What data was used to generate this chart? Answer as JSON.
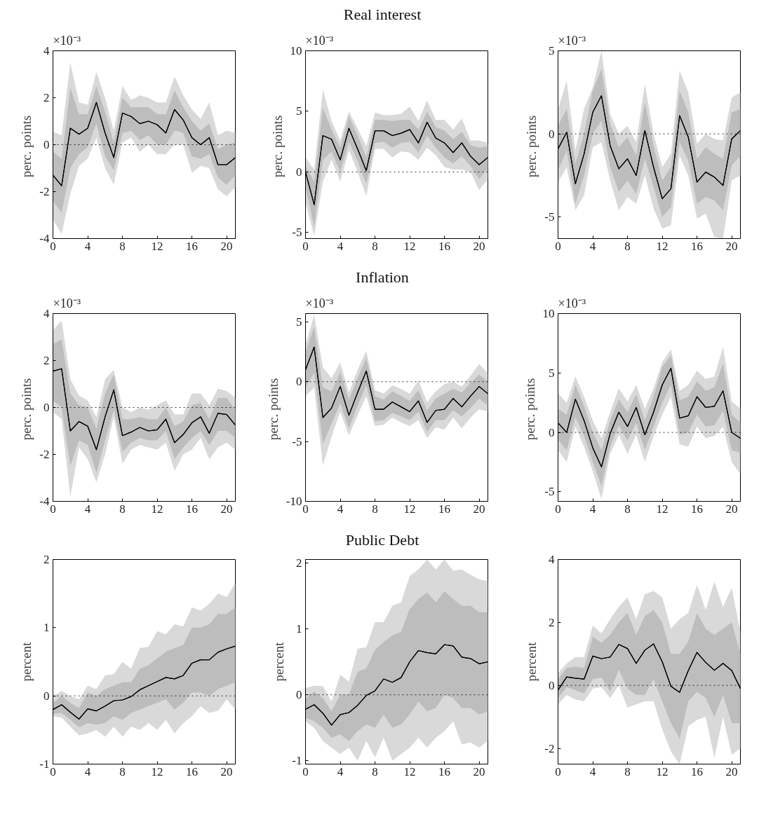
{
  "chart_data": [
    {
      "type": "line",
      "ylabel": "perc.  points",
      "annotations": [
        "×10⁻³"
      ],
      "x": [
        0,
        1,
        2,
        3,
        4,
        5,
        6,
        7,
        8,
        9,
        10,
        11,
        12,
        13,
        14,
        15,
        16,
        17,
        18,
        19,
        20,
        21
      ],
      "xlim": [
        0,
        21
      ],
      "xticks": [
        0,
        4,
        8,
        12,
        16,
        20
      ],
      "ylim": [
        -4,
        4
      ],
      "yticks": [
        -4,
        -2,
        0,
        2,
        4
      ],
      "ref_lines": [
        {
          "axis": "y",
          "value": 0,
          "color": "#000000",
          "line_style": "dotted"
        }
      ],
      "series": [
        {
          "color": "#000000",
          "values": [
            -1.3,
            -1.75,
            0.7,
            0.45,
            0.7,
            1.8,
            0.5,
            -0.55,
            1.35,
            1.2,
            0.9,
            1.0,
            0.85,
            0.5,
            1.5,
            1.05,
            0.3,
            0.0,
            0.3,
            -0.85,
            -0.85,
            -0.55
          ],
          "lower": [
            -3.2,
            -3.8,
            -2.1,
            -0.9,
            -0.6,
            0.3,
            -1.0,
            -1.7,
            0.1,
            0.3,
            -0.3,
            0.0,
            -0.4,
            -0.4,
            0.0,
            0.0,
            -1.2,
            -0.9,
            -1.0,
            -1.9,
            -2.2,
            -1.8
          ],
          "upper": [
            0.55,
            0.4,
            3.5,
            1.8,
            1.7,
            3.1,
            2.0,
            0.6,
            2.5,
            1.9,
            2.1,
            2.0,
            1.8,
            1.8,
            2.9,
            2.1,
            1.5,
            1.1,
            1.8,
            0.4,
            0.6,
            0.5
          ]
        },
        {
          "color": "#000000",
          "values": [
            -1.3,
            -1.75,
            0.7,
            0.45,
            0.7,
            1.8,
            0.5,
            -0.55,
            1.35,
            1.2,
            0.9,
            1.0,
            0.85,
            0.5,
            1.5,
            1.05,
            0.3,
            0.0,
            0.3,
            -0.85,
            -0.85,
            -0.55
          ],
          "lower": [
            -2.4,
            -2.9,
            -1.0,
            -0.4,
            -0.1,
            0.9,
            -0.5,
            -1.1,
            0.5,
            0.6,
            0.2,
            0.4,
            0.0,
            0.0,
            0.6,
            0.5,
            -0.5,
            -0.6,
            -0.4,
            -1.4,
            -1.7,
            -1.3
          ],
          "upper": [
            -0.3,
            -0.6,
            2.4,
            1.3,
            1.3,
            2.5,
            1.4,
            0.1,
            2.0,
            1.6,
            1.6,
            1.6,
            1.3,
            1.3,
            2.3,
            1.6,
            1.0,
            0.6,
            0.9,
            -0.2,
            0.0,
            0.1
          ]
        }
      ]
    },
    {
      "type": "line",
      "title": "Real interest",
      "ylabel": "perc.  points",
      "annotations": [
        "×10⁻³"
      ],
      "x": [
        0,
        1,
        2,
        3,
        4,
        5,
        6,
        7,
        8,
        9,
        10,
        11,
        12,
        13,
        14,
        15,
        16,
        17,
        18,
        19,
        20,
        21
      ],
      "xlim": [
        0,
        21
      ],
      "xticks": [
        0,
        4,
        8,
        12,
        16,
        20
      ],
      "ylim": [
        -5.5,
        10
      ],
      "yticks": [
        -5,
        0,
        5,
        10
      ],
      "ref_lines": [
        {
          "axis": "y",
          "value": 0,
          "color": "#000000",
          "line_style": "dotted"
        }
      ],
      "series": [
        {
          "color": "#000000",
          "values": [
            0,
            -2.7,
            3.0,
            2.7,
            1.0,
            3.6,
            1.9,
            0.1,
            3.4,
            3.4,
            3.0,
            3.2,
            3.5,
            2.4,
            4.1,
            2.8,
            2.4,
            1.6,
            2.4,
            1.3,
            0.6,
            1.2
          ],
          "lower": [
            -2.5,
            -5.3,
            -0.8,
            1.0,
            -0.8,
            1.8,
            0.0,
            -2.0,
            1.9,
            1.9,
            1.2,
            1.7,
            1.6,
            1.0,
            2.0,
            1.4,
            0.4,
            0.2,
            0.2,
            0.0,
            -1.5,
            -0.6
          ],
          "upper": [
            1.2,
            0.2,
            6.8,
            4.2,
            2.6,
            5.0,
            3.6,
            2.1,
            4.9,
            4.7,
            4.7,
            4.8,
            5.4,
            4.2,
            5.9,
            4.3,
            4.3,
            3.5,
            4.4,
            2.6,
            2.6,
            2.4
          ]
        },
        {
          "color": "#000000",
          "values": [
            0,
            -2.7,
            3.0,
            2.7,
            1.0,
            3.6,
            1.9,
            0.1,
            3.4,
            3.4,
            3.0,
            3.2,
            3.5,
            2.4,
            4.1,
            2.8,
            2.4,
            1.6,
            2.4,
            1.3,
            0.6,
            1.2
          ],
          "lower": [
            -1.2,
            -4.5,
            1.0,
            1.7,
            0.0,
            2.5,
            0.9,
            -1.0,
            2.4,
            2.5,
            2.0,
            2.4,
            2.5,
            1.6,
            3.0,
            2.0,
            1.2,
            0.7,
            1.3,
            0.5,
            -0.6,
            0.3
          ],
          "upper": [
            0.5,
            -0.8,
            5.3,
            3.5,
            2.0,
            4.6,
            3.0,
            1.2,
            4.3,
            4.3,
            4.2,
            4.3,
            4.3,
            3.5,
            5.0,
            3.7,
            3.4,
            2.7,
            3.3,
            2.2,
            2.0,
            2.1
          ]
        }
      ]
    },
    {
      "type": "line",
      "ylabel": "perc.  points",
      "annotations": [
        "×10⁻³"
      ],
      "x": [
        0,
        1,
        2,
        3,
        4,
        5,
        6,
        7,
        8,
        9,
        10,
        11,
        12,
        13,
        14,
        15,
        16,
        17,
        18,
        19,
        20,
        21
      ],
      "xlim": [
        0,
        21
      ],
      "xticks": [
        0,
        4,
        8,
        12,
        16,
        20
      ],
      "ylim": [
        -6.3,
        5
      ],
      "yticks": [
        -5,
        0,
        5
      ],
      "ref_lines": [
        {
          "axis": "y",
          "value": 0,
          "color": "#000000",
          "line_style": "dotted"
        }
      ],
      "series": [
        {
          "color": "#000000",
          "values": [
            -0.9,
            0.1,
            -3.0,
            -1.2,
            1.3,
            2.3,
            -0.7,
            -2.1,
            -1.5,
            -2.5,
            0.2,
            -2.0,
            -3.9,
            -3.3,
            1.1,
            -0.2,
            -2.9,
            -2.3,
            -2.6,
            -3.1,
            -0.3,
            0.2
          ],
          "lower": [
            -2.9,
            -2.0,
            -4.6,
            -3.7,
            -0.8,
            -0.5,
            -2.8,
            -4.6,
            -3.8,
            -4.2,
            -2.5,
            -4.5,
            -5.7,
            -5.5,
            -1.3,
            -2.5,
            -5.1,
            -4.8,
            -6.2,
            -6.3,
            -2.8,
            -2.5
          ],
          "upper": [
            1.5,
            3.2,
            -1.0,
            1.5,
            2.8,
            5.0,
            1.2,
            0.0,
            0.5,
            -0.5,
            3.0,
            0.0,
            -2.0,
            -1.2,
            3.8,
            2.5,
            -0.6,
            0.0,
            -0.3,
            -0.4,
            2.2,
            2.5
          ]
        },
        {
          "color": "#000000",
          "values": [
            -0.9,
            0.1,
            -3.0,
            -1.2,
            1.3,
            2.3,
            -0.7,
            -2.1,
            -1.5,
            -2.5,
            0.2,
            -2.0,
            -3.9,
            -3.3,
            1.1,
            -0.2,
            -2.9,
            -2.3,
            -2.6,
            -3.1,
            -0.3,
            0.2
          ],
          "lower": [
            -2.2,
            -1.0,
            -4.2,
            -2.5,
            0.0,
            0.8,
            -2.0,
            -3.5,
            -2.8,
            -3.6,
            -1.5,
            -3.2,
            -5.0,
            -4.4,
            -0.5,
            -1.6,
            -4.2,
            -3.8,
            -4.0,
            -4.6,
            -1.9,
            -1.3
          ],
          "upper": [
            0.5,
            1.5,
            -1.8,
            0.0,
            2.6,
            3.9,
            0.6,
            -0.8,
            -0.2,
            -1.3,
            1.9,
            -0.7,
            -2.8,
            -2.0,
            2.6,
            1.3,
            -1.5,
            -0.8,
            -1.2,
            -1.5,
            1.3,
            1.5
          ]
        }
      ]
    },
    {
      "type": "line",
      "ylabel": "perc.  points",
      "annotations": [
        "×10⁻³"
      ],
      "x": [
        0,
        1,
        2,
        3,
        4,
        5,
        6,
        7,
        8,
        9,
        10,
        11,
        12,
        13,
        14,
        15,
        16,
        17,
        18,
        19,
        20,
        21
      ],
      "xlim": [
        0,
        21
      ],
      "xticks": [
        0,
        4,
        8,
        12,
        16,
        20
      ],
      "ylim": [
        -4,
        4
      ],
      "yticks": [
        -4,
        -2,
        0,
        2,
        4
      ],
      "ref_lines": [
        {
          "axis": "y",
          "value": 0,
          "color": "#000000",
          "line_style": "dotted"
        }
      ],
      "series": [
        {
          "color": "#000000",
          "values": [
            1.55,
            1.65,
            -1.0,
            -0.6,
            -0.8,
            -1.8,
            -0.4,
            0.75,
            -1.2,
            -1.05,
            -0.85,
            -1.0,
            -0.95,
            -0.5,
            -1.5,
            -1.15,
            -0.65,
            -0.4,
            -1.1,
            -0.25,
            -0.3,
            -0.75
          ],
          "lower": [
            -0.2,
            -0.5,
            -3.8,
            -1.7,
            -2.2,
            -3.2,
            -2.0,
            -0.4,
            -2.4,
            -1.8,
            -1.6,
            -1.7,
            -1.8,
            -1.5,
            -2.7,
            -2.0,
            -1.8,
            -1.3,
            -2.2,
            -1.7,
            -1.5,
            -1.8
          ],
          "upper": [
            3.3,
            3.7,
            1.2,
            0.5,
            0.3,
            -0.4,
            1.2,
            1.6,
            0.0,
            -0.2,
            0.0,
            -0.1,
            0.1,
            0.3,
            -0.3,
            -0.3,
            0.6,
            0.6,
            0.1,
            0.8,
            0.7,
            0.4
          ]
        },
        {
          "color": "#000000",
          "values": [
            1.55,
            1.65,
            -1.0,
            -0.6,
            -0.8,
            -1.8,
            -0.4,
            0.75,
            -1.2,
            -1.05,
            -0.85,
            -1.0,
            -0.95,
            -0.5,
            -1.5,
            -1.15,
            -0.65,
            -0.4,
            -1.1,
            -0.25,
            -0.3,
            -0.75
          ],
          "lower": [
            0.3,
            0.0,
            -2.5,
            -1.4,
            -1.6,
            -2.8,
            -1.4,
            -0.1,
            -1.9,
            -1.5,
            -1.3,
            -1.4,
            -1.4,
            -1.0,
            -2.2,
            -1.7,
            -1.3,
            -1.0,
            -1.6,
            -1.0,
            -1.0,
            -1.3
          ],
          "upper": [
            2.7,
            2.9,
            0.6,
            0.1,
            0.0,
            -0.9,
            0.6,
            1.4,
            -0.5,
            -0.5,
            -0.4,
            -0.5,
            -0.5,
            0.0,
            -0.8,
            -0.6,
            0.1,
            0.2,
            -0.5,
            0.4,
            0.4,
            -0.1
          ]
        }
      ]
    },
    {
      "type": "line",
      "title": "Inflation",
      "ylabel": "perc.  points",
      "annotations": [
        "×10⁻³"
      ],
      "x": [
        0,
        1,
        2,
        3,
        4,
        5,
        6,
        7,
        8,
        9,
        10,
        11,
        12,
        13,
        14,
        15,
        16,
        17,
        18,
        19,
        20,
        21
      ],
      "xlim": [
        0,
        21
      ],
      "xticks": [
        0,
        4,
        8,
        12,
        16,
        20
      ],
      "ylim": [
        -10,
        5.7
      ],
      "yticks": [
        -10,
        -5,
        0,
        5
      ],
      "ref_lines": [
        {
          "axis": "y",
          "value": 0,
          "color": "#000000",
          "line_style": "dotted"
        }
      ],
      "series": [
        {
          "color": "#000000",
          "values": [
            1.0,
            2.9,
            -3.0,
            -2.2,
            -0.4,
            -2.8,
            -0.9,
            0.9,
            -2.3,
            -2.3,
            -1.7,
            -2.1,
            -2.5,
            -1.6,
            -3.4,
            -2.4,
            -2.3,
            -1.4,
            -2.1,
            -1.2,
            -0.4,
            -1.0
          ],
          "lower": [
            -1.2,
            -0.5,
            -7.0,
            -4.6,
            -2.5,
            -4.5,
            -2.8,
            -1.2,
            -3.7,
            -3.6,
            -3.0,
            -3.4,
            -3.7,
            -3.2,
            -4.7,
            -3.8,
            -4.0,
            -3.0,
            -3.9,
            -3.0,
            -2.3,
            -2.5
          ],
          "upper": [
            3.1,
            5.6,
            1.2,
            0.3,
            1.6,
            -0.9,
            1.0,
            2.6,
            -0.7,
            -1.0,
            -0.3,
            -0.6,
            -1.0,
            0.1,
            -1.7,
            -0.8,
            -0.2,
            0.0,
            -0.4,
            0.5,
            1.5,
            0.7
          ]
        },
        {
          "color": "#000000",
          "values": [
            1.0,
            2.9,
            -3.0,
            -2.2,
            -0.4,
            -2.8,
            -0.9,
            0.9,
            -2.3,
            -2.3,
            -1.7,
            -2.1,
            -2.5,
            -1.6,
            -3.4,
            -2.4,
            -2.3,
            -1.4,
            -2.1,
            -1.2,
            -0.4,
            -1.0
          ],
          "lower": [
            -0.5,
            0.8,
            -5.2,
            -3.5,
            -1.8,
            -3.9,
            -2.0,
            -0.3,
            -3.3,
            -3.2,
            -2.6,
            -2.9,
            -3.2,
            -2.5,
            -4.2,
            -3.2,
            -3.2,
            -2.4,
            -2.9,
            -2.2,
            -1.4,
            -2.0
          ],
          "upper": [
            2.4,
            4.6,
            -0.5,
            -0.8,
            0.8,
            -1.5,
            0.3,
            2.0,
            -1.2,
            -1.5,
            -0.8,
            -1.2,
            -1.6,
            -0.7,
            -2.4,
            -1.4,
            -1.0,
            -0.6,
            -0.9,
            -0.1,
            0.6,
            0.0
          ]
        }
      ]
    },
    {
      "type": "line",
      "ylabel": "perc.  points",
      "annotations": [
        "×10⁻³"
      ],
      "x": [
        0,
        1,
        2,
        3,
        4,
        5,
        6,
        7,
        8,
        9,
        10,
        11,
        12,
        13,
        14,
        15,
        16,
        17,
        18,
        19,
        20,
        21
      ],
      "xlim": [
        0,
        21
      ],
      "xticks": [
        0,
        4,
        8,
        12,
        16,
        20
      ],
      "ylim": [
        -5.8,
        10
      ],
      "yticks": [
        -5,
        0,
        5,
        10
      ],
      "ref_lines": [
        {
          "axis": "y",
          "value": 0,
          "color": "#000000",
          "line_style": "dotted"
        }
      ],
      "series": [
        {
          "color": "#000000",
          "values": [
            0.8,
            0.0,
            2.8,
            1.0,
            -1.3,
            -2.9,
            -0.1,
            1.7,
            0.5,
            2.1,
            -0.2,
            1.7,
            4.0,
            5.4,
            1.2,
            1.4,
            3.0,
            2.1,
            2.2,
            3.5,
            0.0,
            -0.5
          ],
          "lower": [
            -1.5,
            -2.5,
            0.5,
            -1.2,
            -3.3,
            -5.6,
            -1.8,
            -0.2,
            -1.8,
            -0.2,
            -2.5,
            -0.3,
            1.5,
            3.0,
            -1.0,
            -1.2,
            0.5,
            -0.5,
            -0.3,
            0.5,
            -2.5,
            -3.5
          ],
          "upper": [
            3.3,
            2.5,
            4.7,
            3.0,
            1.0,
            -0.5,
            1.7,
            3.7,
            2.6,
            4.0,
            2.0,
            3.7,
            5.9,
            7.0,
            3.5,
            4.0,
            5.2,
            4.5,
            4.7,
            7.2,
            2.6,
            2.0
          ]
        },
        {
          "color": "#000000",
          "values": [
            0.8,
            0.0,
            2.8,
            1.0,
            -1.3,
            -2.9,
            -0.1,
            1.7,
            0.5,
            2.1,
            -0.2,
            1.7,
            4.0,
            5.4,
            1.2,
            1.4,
            3.0,
            2.1,
            2.2,
            3.5,
            0.0,
            -0.5
          ],
          "lower": [
            -0.6,
            -1.5,
            1.3,
            -0.3,
            -2.5,
            -4.5,
            -1.2,
            0.6,
            -0.7,
            0.8,
            -1.5,
            0.5,
            2.5,
            4.0,
            -0.2,
            0.0,
            1.5,
            0.5,
            0.6,
            1.8,
            -1.5,
            -1.7
          ],
          "upper": [
            2.0,
            1.5,
            4.0,
            2.2,
            0.0,
            -1.5,
            1.0,
            2.8,
            1.7,
            3.2,
            1.0,
            3.0,
            5.5,
            6.5,
            2.7,
            3.0,
            4.3,
            3.5,
            3.8,
            5.8,
            1.5,
            0.8
          ]
        }
      ]
    },
    {
      "type": "line",
      "ylabel": "percent",
      "x": [
        0,
        1,
        2,
        3,
        4,
        5,
        6,
        7,
        8,
        9,
        10,
        11,
        12,
        13,
        14,
        15,
        16,
        17,
        18,
        19,
        20,
        21
      ],
      "xlim": [
        0,
        21
      ],
      "xticks": [
        0,
        4,
        8,
        12,
        16,
        20
      ],
      "ylim": [
        -1,
        2
      ],
      "yticks": [
        -1,
        0,
        1,
        2
      ],
      "ref_lines": [
        {
          "axis": "y",
          "value": 0,
          "color": "#000000",
          "line_style": "dotted"
        }
      ],
      "series": [
        {
          "color": "#000000",
          "values": [
            -0.2,
            -0.13,
            -0.24,
            -0.34,
            -0.19,
            -0.22,
            -0.15,
            -0.07,
            -0.06,
            -0.01,
            0.09,
            0.15,
            0.21,
            0.27,
            0.25,
            0.3,
            0.48,
            0.53,
            0.53,
            0.64,
            0.69,
            0.73
          ],
          "lower": [
            -0.3,
            -0.32,
            -0.45,
            -0.58,
            -0.55,
            -0.5,
            -0.6,
            -0.45,
            -0.6,
            -0.45,
            -0.5,
            -0.4,
            -0.5,
            -0.35,
            -0.55,
            -0.4,
            -0.3,
            -0.15,
            -0.25,
            -0.22,
            -0.05,
            -0.2
          ],
          "upper": [
            0.0,
            0.07,
            0.0,
            -0.05,
            0.15,
            0.1,
            0.3,
            0.32,
            0.5,
            0.4,
            0.7,
            0.72,
            0.95,
            0.9,
            1.05,
            1.02,
            1.3,
            1.25,
            1.35,
            1.5,
            1.45,
            1.65
          ]
        },
        {
          "color": "#000000",
          "values": [
            -0.2,
            -0.13,
            -0.24,
            -0.34,
            -0.19,
            -0.22,
            -0.15,
            -0.07,
            -0.06,
            -0.01,
            0.09,
            0.15,
            0.21,
            0.27,
            0.25,
            0.3,
            0.48,
            0.53,
            0.53,
            0.64,
            0.69,
            0.73
          ],
          "lower": [
            -0.26,
            -0.25,
            -0.35,
            -0.46,
            -0.4,
            -0.42,
            -0.4,
            -0.3,
            -0.35,
            -0.25,
            -0.2,
            -0.15,
            -0.1,
            -0.05,
            -0.2,
            -0.1,
            0.05,
            0.05,
            0.0,
            0.1,
            0.15,
            0.2
          ],
          "upper": [
            -0.1,
            0.0,
            -0.1,
            -0.18,
            0.05,
            0.0,
            0.1,
            0.15,
            0.2,
            0.2,
            0.4,
            0.45,
            0.55,
            0.65,
            0.7,
            0.75,
            1.0,
            1.0,
            1.05,
            1.2,
            1.2,
            1.3
          ]
        }
      ]
    },
    {
      "type": "line",
      "title": "Public Debt",
      "ylabel": "percent",
      "x": [
        0,
        1,
        2,
        3,
        4,
        5,
        6,
        7,
        8,
        9,
        10,
        11,
        12,
        13,
        14,
        15,
        16,
        17,
        18,
        19,
        20,
        21
      ],
      "xlim": [
        0,
        21
      ],
      "xticks": [
        0,
        4,
        8,
        12,
        16,
        20
      ],
      "ylim": [
        -1.05,
        2.05
      ],
      "yticks": [
        -1,
        0,
        1,
        2
      ],
      "ref_lines": [
        {
          "axis": "y",
          "value": 0,
          "color": "#000000",
          "line_style": "dotted"
        }
      ],
      "series": [
        {
          "color": "#000000",
          "values": [
            -0.22,
            -0.15,
            -0.28,
            -0.46,
            -0.3,
            -0.27,
            -0.16,
            -0.01,
            0.06,
            0.24,
            0.19,
            0.26,
            0.5,
            0.67,
            0.64,
            0.62,
            0.76,
            0.74,
            0.57,
            0.55,
            0.47,
            0.5
          ],
          "lower": [
            -0.4,
            -0.5,
            -0.7,
            -0.8,
            -0.9,
            -0.8,
            -1.0,
            -0.7,
            -0.95,
            -0.65,
            -1.0,
            -0.9,
            -0.8,
            -0.65,
            -0.8,
            -0.65,
            -0.55,
            -0.4,
            -0.75,
            -0.72,
            -0.8,
            -0.7
          ],
          "upper": [
            0.1,
            0.14,
            0.13,
            -0.1,
            0.3,
            0.2,
            0.7,
            0.72,
            1.1,
            1.1,
            1.35,
            1.4,
            1.8,
            1.9,
            2.05,
            1.9,
            2.05,
            1.88,
            1.9,
            1.82,
            1.75,
            1.72
          ]
        },
        {
          "color": "#000000",
          "values": [
            -0.22,
            -0.15,
            -0.28,
            -0.46,
            -0.3,
            -0.27,
            -0.16,
            -0.01,
            0.06,
            0.24,
            0.19,
            0.26,
            0.5,
            0.67,
            0.64,
            0.62,
            0.76,
            0.74,
            0.57,
            0.55,
            0.47,
            0.5
          ],
          "lower": [
            -0.35,
            -0.4,
            -0.5,
            -0.65,
            -0.6,
            -0.7,
            -0.55,
            -0.45,
            -0.5,
            -0.3,
            -0.5,
            -0.45,
            -0.3,
            -0.1,
            -0.25,
            -0.2,
            0.0,
            -0.05,
            -0.2,
            -0.2,
            -0.3,
            -0.25
          ],
          "upper": [
            -0.05,
            0.05,
            -0.05,
            -0.25,
            0.0,
            0.0,
            0.35,
            0.4,
            0.68,
            0.8,
            0.9,
            0.95,
            1.3,
            1.45,
            1.55,
            1.4,
            1.57,
            1.45,
            1.35,
            1.35,
            1.25,
            1.25
          ]
        }
      ]
    },
    {
      "type": "line",
      "ylabel": "percent",
      "x": [
        0,
        1,
        2,
        3,
        4,
        5,
        6,
        7,
        8,
        9,
        10,
        11,
        12,
        13,
        14,
        15,
        16,
        17,
        18,
        19,
        20,
        21
      ],
      "xlim": [
        0,
        21
      ],
      "xticks": [
        0,
        4,
        8,
        12,
        16,
        20
      ],
      "ylim": [
        -2.5,
        4
      ],
      "yticks": [
        -2,
        0,
        2,
        4
      ],
      "ref_lines": [
        {
          "axis": "y",
          "value": 0,
          "color": "#000000",
          "line_style": "dotted"
        }
      ],
      "series": [
        {
          "color": "#000000",
          "values": [
            -0.15,
            0.27,
            0.23,
            0.2,
            0.93,
            0.85,
            0.9,
            1.3,
            1.17,
            0.7,
            1.12,
            1.32,
            0.75,
            -0.03,
            -0.22,
            0.47,
            1.05,
            0.73,
            0.48,
            0.7,
            0.47,
            -0.1
          ],
          "lower": [
            -0.6,
            -0.3,
            -0.45,
            -0.5,
            -0.1,
            -0.05,
            -0.4,
            0.0,
            -0.7,
            -0.6,
            -0.5,
            -0.5,
            -1.4,
            -2.1,
            -2.5,
            -1.3,
            -1.1,
            -1.0,
            -2.3,
            -1.0,
            -2.2,
            -2.0
          ],
          "upper": [
            0.4,
            0.7,
            0.9,
            0.9,
            1.9,
            1.65,
            2.1,
            2.5,
            2.8,
            2.1,
            2.9,
            3.0,
            2.8,
            1.8,
            2.1,
            2.3,
            3.2,
            2.4,
            3.3,
            2.5,
            3.1,
            1.7
          ]
        },
        {
          "color": "#000000",
          "values": [
            -0.15,
            0.27,
            0.23,
            0.2,
            0.93,
            0.85,
            0.9,
            1.3,
            1.17,
            0.7,
            1.12,
            1.32,
            0.75,
            -0.03,
            -0.22,
            0.47,
            1.05,
            0.73,
            0.48,
            0.7,
            0.47,
            -0.1
          ],
          "lower": [
            -0.4,
            -0.05,
            -0.15,
            -0.25,
            0.2,
            0.25,
            -0.2,
            0.5,
            -0.1,
            -0.3,
            -0.3,
            0.2,
            -0.5,
            -1.2,
            -1.7,
            -0.5,
            -0.2,
            -0.4,
            -1.0,
            -0.3,
            -1.2,
            -1.2
          ],
          "upper": [
            0.2,
            0.55,
            0.6,
            0.55,
            1.55,
            1.35,
            1.6,
            2.0,
            2.3,
            1.6,
            2.2,
            2.4,
            2.0,
            1.0,
            1.0,
            1.4,
            2.3,
            1.8,
            1.6,
            1.8,
            2.0,
            1.0
          ]
        }
      ]
    }
  ]
}
